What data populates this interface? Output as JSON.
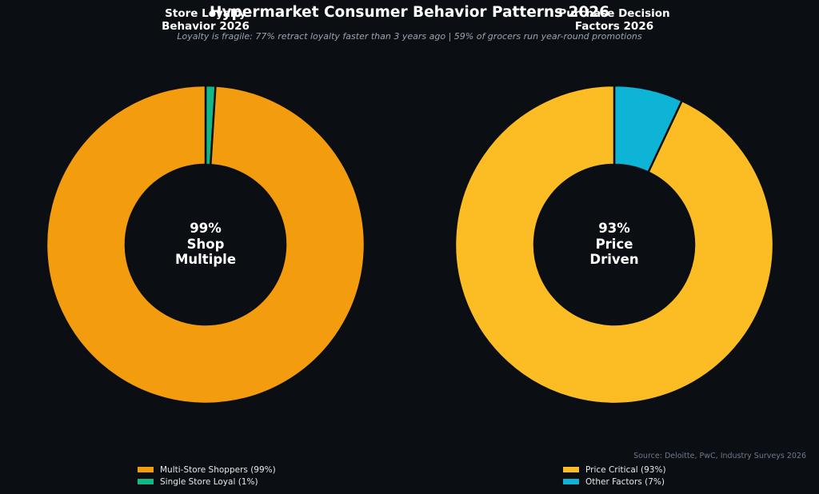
{
  "header": {
    "title": "Hypermarket Consumer Behavior Patterns 2026",
    "subtitle": "Loyalty is fragile: 77% retract loyalty faster than 3 years ago | 59% of grocers run year-round promotions"
  },
  "source": "Source: Deloitte, PwC, Industry Surveys 2026",
  "chart_data": [
    {
      "type": "pie",
      "title_lines": [
        "Store Loyalty",
        "Behavior 2026"
      ],
      "center_lines": [
        "99%",
        "Shop",
        "Multiple"
      ],
      "slices": [
        {
          "label": "Multi-Store Shoppers (99%)",
          "value": 99,
          "color": "#f39c0d"
        },
        {
          "label": "Single Store Loyal (1%)",
          "value": 1,
          "color": "#12b886"
        }
      ]
    },
    {
      "type": "pie",
      "title_lines": [
        "Purchase Decision",
        "Factors 2026"
      ],
      "center_lines": [
        "93%",
        "Price",
        "Driven"
      ],
      "slices": [
        {
          "label": "Price Critical (93%)",
          "value": 93,
          "color": "#fbbd23"
        },
        {
          "label": "Other Factors (7%)",
          "value": 7,
          "color": "#0db4d5"
        }
      ]
    }
  ]
}
